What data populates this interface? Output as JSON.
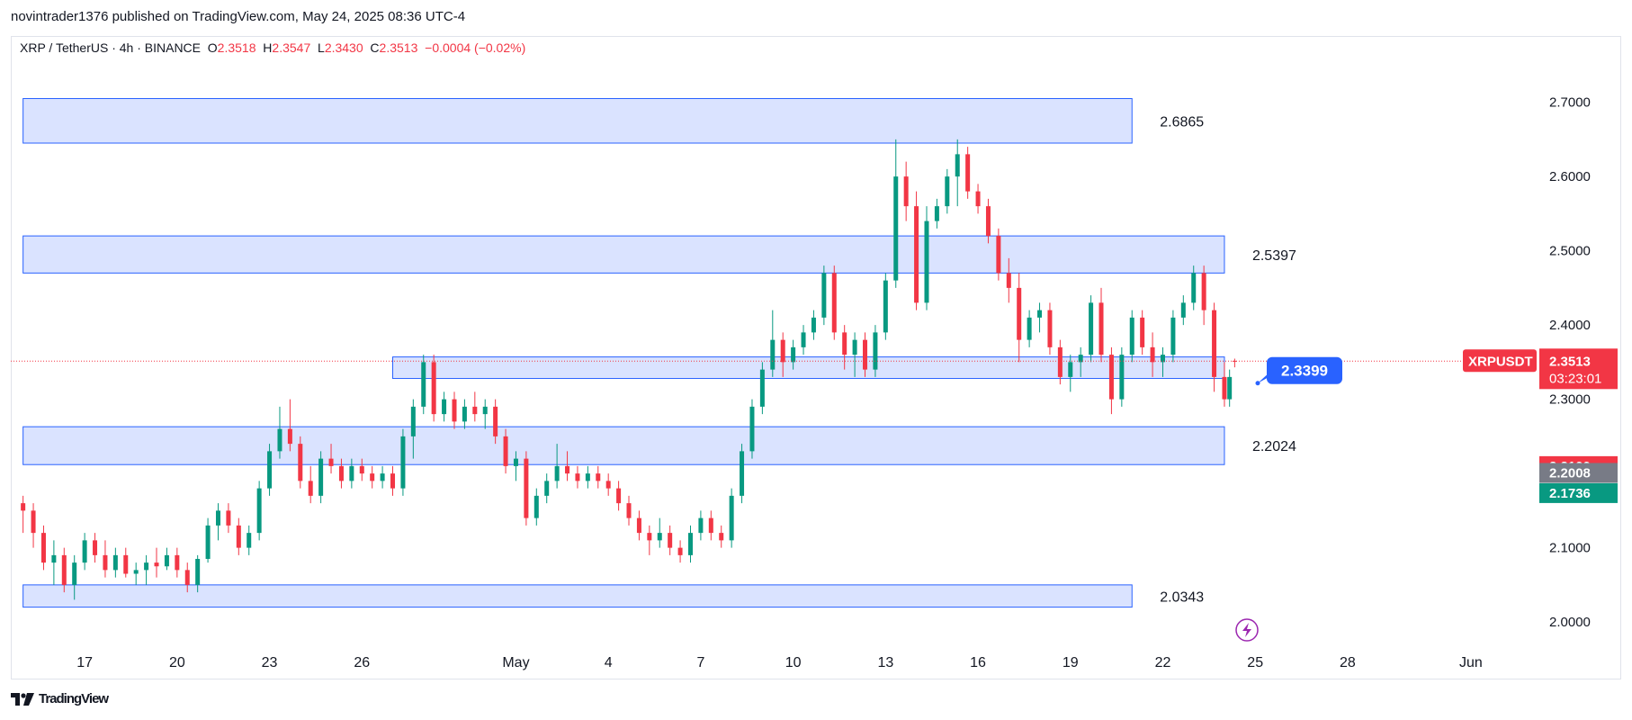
{
  "header": {
    "publish_line": "novintrader1376 published on TradingView.com, May 24, 2025 08:36 UTC-4"
  },
  "legend": {
    "symbol_line": "XRP / TetherUS · 4h · BINANCE",
    "o_label": "O",
    "o_value": "2.3518",
    "h_label": "H",
    "h_value": "2.3547",
    "l_label": "L",
    "l_value": "2.3430",
    "c_label": "C",
    "c_value": "2.3513",
    "change": "−0.0004 (−0.02%)"
  },
  "footer": {
    "brand": "TradingView",
    "logo": "tradingview-logo-icon"
  },
  "colors": {
    "up": "#089981",
    "down": "#f23645",
    "zone_fill": "#d6e0ff",
    "zone_stroke": "#2962ff",
    "callout": "#2962ff"
  },
  "chart_data": {
    "type": "candlestick",
    "symbol": "XRPUSDT",
    "ylim": [
      1.965,
      2.765
    ],
    "y_ticks": [
      "2.7000",
      "2.6000",
      "2.5000",
      "2.4000",
      "2.3000",
      "2.1000",
      "2.0000"
    ],
    "x_ticks": [
      {
        "label": "17",
        "date": "2025-04-17"
      },
      {
        "label": "20",
        "date": "2025-04-20"
      },
      {
        "label": "23",
        "date": "2025-04-23"
      },
      {
        "label": "26",
        "date": "2025-04-26"
      },
      {
        "label": "May",
        "date": "2025-05-01"
      },
      {
        "label": "4",
        "date": "2025-05-04"
      },
      {
        "label": "7",
        "date": "2025-05-07"
      },
      {
        "label": "10",
        "date": "2025-05-10"
      },
      {
        "label": "13",
        "date": "2025-05-13"
      },
      {
        "label": "16",
        "date": "2025-05-16"
      },
      {
        "label": "19",
        "date": "2025-05-19"
      },
      {
        "label": "22",
        "date": "2025-05-22"
      },
      {
        "label": "25",
        "date": "2025-05-25"
      },
      {
        "label": "28",
        "date": "2025-05-28"
      },
      {
        "label": "Jun",
        "date": "2025-06-01"
      }
    ],
    "zones": [
      {
        "label": "2.6865",
        "low": 2.645,
        "high": 2.705,
        "start": "2025-04-15",
        "end": "2025-05-21"
      },
      {
        "label": "2.5397",
        "low": 2.47,
        "high": 2.52,
        "start": "2025-04-15",
        "end": "2025-05-24"
      },
      {
        "label": "",
        "low": 2.328,
        "high": 2.357,
        "start": "2025-04-27",
        "end": "2025-05-24"
      },
      {
        "label": "2.2024",
        "low": 2.212,
        "high": 2.263,
        "start": "2025-04-15",
        "end": "2025-05-24"
      },
      {
        "label": "2.0343",
        "low": 2.02,
        "high": 2.05,
        "start": "2025-04-15",
        "end": "2025-05-21"
      }
    ],
    "callout": {
      "label": "2.3399",
      "value": 2.3399
    },
    "last_price": {
      "label": "XRPUSDT",
      "value": "2.3513",
      "countdown": "03:23:01"
    },
    "price_labels": [
      {
        "value": "2.2100",
        "color": "#f23645"
      },
      {
        "value": "2.2008",
        "color": "#787b86"
      },
      {
        "value": "2.1736",
        "color": "#089981"
      }
    ],
    "candles": [
      {
        "t": "2025-04-15 00:00",
        "o": 2.16,
        "h": 2.17,
        "l": 2.12,
        "c": 2.15
      },
      {
        "t": "2025-04-15 08:00",
        "o": 2.15,
        "h": 2.16,
        "l": 2.1,
        "c": 2.12
      },
      {
        "t": "2025-04-15 16:00",
        "o": 2.12,
        "h": 2.13,
        "l": 2.07,
        "c": 2.08
      },
      {
        "t": "2025-04-16 00:00",
        "o": 2.08,
        "h": 2.11,
        "l": 2.05,
        "c": 2.09
      },
      {
        "t": "2025-04-16 08:00",
        "o": 2.09,
        "h": 2.1,
        "l": 2.04,
        "c": 2.05
      },
      {
        "t": "2025-04-16 16:00",
        "o": 2.05,
        "h": 2.09,
        "l": 2.03,
        "c": 2.08
      },
      {
        "t": "2025-04-17 00:00",
        "o": 2.08,
        "h": 2.12,
        "l": 2.07,
        "c": 2.11
      },
      {
        "t": "2025-04-17 08:00",
        "o": 2.11,
        "h": 2.12,
        "l": 2.08,
        "c": 2.09
      },
      {
        "t": "2025-04-17 16:00",
        "o": 2.09,
        "h": 2.11,
        "l": 2.06,
        "c": 2.07
      },
      {
        "t": "2025-04-18 00:00",
        "o": 2.07,
        "h": 2.1,
        "l": 2.06,
        "c": 2.09
      },
      {
        "t": "2025-04-18 08:00",
        "o": 2.09,
        "h": 2.1,
        "l": 2.06,
        "c": 2.065
      },
      {
        "t": "2025-04-18 16:00",
        "o": 2.065,
        "h": 2.08,
        "l": 2.05,
        "c": 2.07
      },
      {
        "t": "2025-04-19 00:00",
        "o": 2.07,
        "h": 2.09,
        "l": 2.05,
        "c": 2.08
      },
      {
        "t": "2025-04-19 08:00",
        "o": 2.08,
        "h": 2.1,
        "l": 2.06,
        "c": 2.075
      },
      {
        "t": "2025-04-19 16:00",
        "o": 2.075,
        "h": 2.1,
        "l": 2.07,
        "c": 2.09
      },
      {
        "t": "2025-04-20 00:00",
        "o": 2.09,
        "h": 2.1,
        "l": 2.06,
        "c": 2.07
      },
      {
        "t": "2025-04-20 08:00",
        "o": 2.07,
        "h": 2.08,
        "l": 2.04,
        "c": 2.05
      },
      {
        "t": "2025-04-20 16:00",
        "o": 2.05,
        "h": 2.09,
        "l": 2.04,
        "c": 2.085
      },
      {
        "t": "2025-04-21 00:00",
        "o": 2.085,
        "h": 2.14,
        "l": 2.08,
        "c": 2.13
      },
      {
        "t": "2025-04-21 08:00",
        "o": 2.13,
        "h": 2.16,
        "l": 2.11,
        "c": 2.15
      },
      {
        "t": "2025-04-21 16:00",
        "o": 2.15,
        "h": 2.16,
        "l": 2.12,
        "c": 2.13
      },
      {
        "t": "2025-04-22 00:00",
        "o": 2.13,
        "h": 2.14,
        "l": 2.09,
        "c": 2.1
      },
      {
        "t": "2025-04-22 08:00",
        "o": 2.1,
        "h": 2.13,
        "l": 2.09,
        "c": 2.12
      },
      {
        "t": "2025-04-22 16:00",
        "o": 2.12,
        "h": 2.19,
        "l": 2.11,
        "c": 2.18
      },
      {
        "t": "2025-04-23 00:00",
        "o": 2.18,
        "h": 2.24,
        "l": 2.17,
        "c": 2.23
      },
      {
        "t": "2025-04-23 08:00",
        "o": 2.23,
        "h": 2.29,
        "l": 2.22,
        "c": 2.26
      },
      {
        "t": "2025-04-23 16:00",
        "o": 2.26,
        "h": 2.3,
        "l": 2.23,
        "c": 2.24
      },
      {
        "t": "2025-04-24 00:00",
        "o": 2.24,
        "h": 2.25,
        "l": 2.18,
        "c": 2.19
      },
      {
        "t": "2025-04-24 08:00",
        "o": 2.19,
        "h": 2.21,
        "l": 2.16,
        "c": 2.17
      },
      {
        "t": "2025-04-24 16:00",
        "o": 2.17,
        "h": 2.23,
        "l": 2.16,
        "c": 2.22
      },
      {
        "t": "2025-04-25 00:00",
        "o": 2.22,
        "h": 2.24,
        "l": 2.2,
        "c": 2.21
      },
      {
        "t": "2025-04-25 08:00",
        "o": 2.21,
        "h": 2.22,
        "l": 2.18,
        "c": 2.19
      },
      {
        "t": "2025-04-25 16:00",
        "o": 2.19,
        "h": 2.22,
        "l": 2.18,
        "c": 2.21
      },
      {
        "t": "2025-04-26 00:00",
        "o": 2.21,
        "h": 2.22,
        "l": 2.19,
        "c": 2.2
      },
      {
        "t": "2025-04-26 08:00",
        "o": 2.2,
        "h": 2.21,
        "l": 2.18,
        "c": 2.19
      },
      {
        "t": "2025-04-26 16:00",
        "o": 2.19,
        "h": 2.21,
        "l": 2.18,
        "c": 2.2
      },
      {
        "t": "2025-04-27 00:00",
        "o": 2.2,
        "h": 2.21,
        "l": 2.17,
        "c": 2.18
      },
      {
        "t": "2025-04-27 08:00",
        "o": 2.18,
        "h": 2.26,
        "l": 2.17,
        "c": 2.25
      },
      {
        "t": "2025-04-27 16:00",
        "o": 2.25,
        "h": 2.3,
        "l": 2.22,
        "c": 2.29
      },
      {
        "t": "2025-04-28 00:00",
        "o": 2.29,
        "h": 2.36,
        "l": 2.28,
        "c": 2.35
      },
      {
        "t": "2025-04-28 08:00",
        "o": 2.35,
        "h": 2.36,
        "l": 2.27,
        "c": 2.28
      },
      {
        "t": "2025-04-28 16:00",
        "o": 2.28,
        "h": 2.31,
        "l": 2.27,
        "c": 2.3
      },
      {
        "t": "2025-04-29 00:00",
        "o": 2.3,
        "h": 2.31,
        "l": 2.26,
        "c": 2.27
      },
      {
        "t": "2025-04-29 08:00",
        "o": 2.27,
        "h": 2.3,
        "l": 2.26,
        "c": 2.29
      },
      {
        "t": "2025-04-29 16:00",
        "o": 2.29,
        "h": 2.31,
        "l": 2.27,
        "c": 2.28
      },
      {
        "t": "2025-04-30 00:00",
        "o": 2.28,
        "h": 2.3,
        "l": 2.26,
        "c": 2.29
      },
      {
        "t": "2025-04-30 08:00",
        "o": 2.29,
        "h": 2.3,
        "l": 2.24,
        "c": 2.25
      },
      {
        "t": "2025-04-30 16:00",
        "o": 2.25,
        "h": 2.26,
        "l": 2.2,
        "c": 2.21
      },
      {
        "t": "2025-05-01 00:00",
        "o": 2.21,
        "h": 2.23,
        "l": 2.19,
        "c": 2.22
      },
      {
        "t": "2025-05-01 08:00",
        "o": 2.22,
        "h": 2.23,
        "l": 2.13,
        "c": 2.14
      },
      {
        "t": "2025-05-01 16:00",
        "o": 2.14,
        "h": 2.18,
        "l": 2.13,
        "c": 2.17
      },
      {
        "t": "2025-05-02 00:00",
        "o": 2.17,
        "h": 2.2,
        "l": 2.16,
        "c": 2.19
      },
      {
        "t": "2025-05-02 08:00",
        "o": 2.19,
        "h": 2.24,
        "l": 2.18,
        "c": 2.21
      },
      {
        "t": "2025-05-02 16:00",
        "o": 2.21,
        "h": 2.23,
        "l": 2.19,
        "c": 2.2
      },
      {
        "t": "2025-05-03 00:00",
        "o": 2.2,
        "h": 2.21,
        "l": 2.18,
        "c": 2.19
      },
      {
        "t": "2025-05-03 08:00",
        "o": 2.19,
        "h": 2.21,
        "l": 2.18,
        "c": 2.2
      },
      {
        "t": "2025-05-03 16:00",
        "o": 2.2,
        "h": 2.21,
        "l": 2.18,
        "c": 2.19
      },
      {
        "t": "2025-05-04 00:00",
        "o": 2.19,
        "h": 2.2,
        "l": 2.17,
        "c": 2.18
      },
      {
        "t": "2025-05-04 08:00",
        "o": 2.18,
        "h": 2.19,
        "l": 2.15,
        "c": 2.16
      },
      {
        "t": "2025-05-04 16:00",
        "o": 2.16,
        "h": 2.17,
        "l": 2.13,
        "c": 2.14
      },
      {
        "t": "2025-05-05 00:00",
        "o": 2.14,
        "h": 2.15,
        "l": 2.11,
        "c": 2.12
      },
      {
        "t": "2025-05-05 08:00",
        "o": 2.12,
        "h": 2.13,
        "l": 2.09,
        "c": 2.11
      },
      {
        "t": "2025-05-05 16:00",
        "o": 2.11,
        "h": 2.14,
        "l": 2.1,
        "c": 2.12
      },
      {
        "t": "2025-05-06 00:00",
        "o": 2.12,
        "h": 2.13,
        "l": 2.09,
        "c": 2.1
      },
      {
        "t": "2025-05-06 08:00",
        "o": 2.1,
        "h": 2.11,
        "l": 2.08,
        "c": 2.09
      },
      {
        "t": "2025-05-06 16:00",
        "o": 2.09,
        "h": 2.13,
        "l": 2.08,
        "c": 2.12
      },
      {
        "t": "2025-05-07 00:00",
        "o": 2.12,
        "h": 2.15,
        "l": 2.11,
        "c": 2.14
      },
      {
        "t": "2025-05-07 08:00",
        "o": 2.14,
        "h": 2.15,
        "l": 2.11,
        "c": 2.12
      },
      {
        "t": "2025-05-07 16:00",
        "o": 2.12,
        "h": 2.13,
        "l": 2.1,
        "c": 2.11
      },
      {
        "t": "2025-05-08 00:00",
        "o": 2.11,
        "h": 2.18,
        "l": 2.1,
        "c": 2.17
      },
      {
        "t": "2025-05-08 08:00",
        "o": 2.17,
        "h": 2.24,
        "l": 2.16,
        "c": 2.23
      },
      {
        "t": "2025-05-08 16:00",
        "o": 2.23,
        "h": 2.3,
        "l": 2.22,
        "c": 2.29
      },
      {
        "t": "2025-05-09 00:00",
        "o": 2.29,
        "h": 2.35,
        "l": 2.28,
        "c": 2.34
      },
      {
        "t": "2025-05-09 08:00",
        "o": 2.34,
        "h": 2.42,
        "l": 2.33,
        "c": 2.38
      },
      {
        "t": "2025-05-09 16:00",
        "o": 2.38,
        "h": 2.39,
        "l": 2.33,
        "c": 2.35
      },
      {
        "t": "2025-05-10 00:00",
        "o": 2.35,
        "h": 2.38,
        "l": 2.34,
        "c": 2.37
      },
      {
        "t": "2025-05-10 08:00",
        "o": 2.37,
        "h": 2.4,
        "l": 2.36,
        "c": 2.39
      },
      {
        "t": "2025-05-10 16:00",
        "o": 2.39,
        "h": 2.42,
        "l": 2.38,
        "c": 2.41
      },
      {
        "t": "2025-05-11 00:00",
        "o": 2.41,
        "h": 2.48,
        "l": 2.4,
        "c": 2.47
      },
      {
        "t": "2025-05-11 08:00",
        "o": 2.47,
        "h": 2.48,
        "l": 2.38,
        "c": 2.39
      },
      {
        "t": "2025-05-11 16:00",
        "o": 2.39,
        "h": 2.4,
        "l": 2.34,
        "c": 2.36
      },
      {
        "t": "2025-05-12 00:00",
        "o": 2.36,
        "h": 2.39,
        "l": 2.33,
        "c": 2.38
      },
      {
        "t": "2025-05-12 08:00",
        "o": 2.38,
        "h": 2.39,
        "l": 2.33,
        "c": 2.34
      },
      {
        "t": "2025-05-12 16:00",
        "o": 2.34,
        "h": 2.4,
        "l": 2.33,
        "c": 2.39
      },
      {
        "t": "2025-05-13 00:00",
        "o": 2.39,
        "h": 2.47,
        "l": 2.38,
        "c": 2.46
      },
      {
        "t": "2025-05-13 08:00",
        "o": 2.46,
        "h": 2.65,
        "l": 2.45,
        "c": 2.6
      },
      {
        "t": "2025-05-13 16:00",
        "o": 2.6,
        "h": 2.62,
        "l": 2.54,
        "c": 2.56
      },
      {
        "t": "2025-05-14 00:00",
        "o": 2.56,
        "h": 2.58,
        "l": 2.42,
        "c": 2.43
      },
      {
        "t": "2025-05-14 08:00",
        "o": 2.43,
        "h": 2.56,
        "l": 2.42,
        "c": 2.54
      },
      {
        "t": "2025-05-14 16:00",
        "o": 2.54,
        "h": 2.57,
        "l": 2.53,
        "c": 2.56
      },
      {
        "t": "2025-05-15 00:00",
        "o": 2.56,
        "h": 2.61,
        "l": 2.55,
        "c": 2.6
      },
      {
        "t": "2025-05-15 08:00",
        "o": 2.6,
        "h": 2.65,
        "l": 2.56,
        "c": 2.63
      },
      {
        "t": "2025-05-15 16:00",
        "o": 2.63,
        "h": 2.64,
        "l": 2.57,
        "c": 2.58
      },
      {
        "t": "2025-05-16 00:00",
        "o": 2.58,
        "h": 2.59,
        "l": 2.55,
        "c": 2.56
      },
      {
        "t": "2025-05-16 08:00",
        "o": 2.56,
        "h": 2.57,
        "l": 2.51,
        "c": 2.52
      },
      {
        "t": "2025-05-16 16:00",
        "o": 2.52,
        "h": 2.53,
        "l": 2.46,
        "c": 2.47
      },
      {
        "t": "2025-05-17 00:00",
        "o": 2.47,
        "h": 2.49,
        "l": 2.43,
        "c": 2.45
      },
      {
        "t": "2025-05-17 08:00",
        "o": 2.45,
        "h": 2.47,
        "l": 2.35,
        "c": 2.38
      },
      {
        "t": "2025-05-17 16:00",
        "o": 2.38,
        "h": 2.42,
        "l": 2.37,
        "c": 2.41
      },
      {
        "t": "2025-05-18 00:00",
        "o": 2.41,
        "h": 2.43,
        "l": 2.39,
        "c": 2.42
      },
      {
        "t": "2025-05-18 08:00",
        "o": 2.42,
        "h": 2.43,
        "l": 2.36,
        "c": 2.37
      },
      {
        "t": "2025-05-18 16:00",
        "o": 2.37,
        "h": 2.38,
        "l": 2.32,
        "c": 2.33
      },
      {
        "t": "2025-05-19 00:00",
        "o": 2.33,
        "h": 2.36,
        "l": 2.31,
        "c": 2.35
      },
      {
        "t": "2025-05-19 08:00",
        "o": 2.35,
        "h": 2.37,
        "l": 2.33,
        "c": 2.36
      },
      {
        "t": "2025-05-19 16:00",
        "o": 2.36,
        "h": 2.44,
        "l": 2.35,
        "c": 2.43
      },
      {
        "t": "2025-05-20 00:00",
        "o": 2.43,
        "h": 2.45,
        "l": 2.35,
        "c": 2.36
      },
      {
        "t": "2025-05-20 08:00",
        "o": 2.36,
        "h": 2.37,
        "l": 2.28,
        "c": 2.3
      },
      {
        "t": "2025-05-20 16:00",
        "o": 2.3,
        "h": 2.37,
        "l": 2.29,
        "c": 2.36
      },
      {
        "t": "2025-05-21 00:00",
        "o": 2.36,
        "h": 2.42,
        "l": 2.35,
        "c": 2.41
      },
      {
        "t": "2025-05-21 08:00",
        "o": 2.41,
        "h": 2.42,
        "l": 2.36,
        "c": 2.37
      },
      {
        "t": "2025-05-21 16:00",
        "o": 2.37,
        "h": 2.39,
        "l": 2.33,
        "c": 2.35
      },
      {
        "t": "2025-05-22 00:00",
        "o": 2.35,
        "h": 2.37,
        "l": 2.33,
        "c": 2.36
      },
      {
        "t": "2025-05-22 08:00",
        "o": 2.36,
        "h": 2.42,
        "l": 2.35,
        "c": 2.41
      },
      {
        "t": "2025-05-22 16:00",
        "o": 2.41,
        "h": 2.44,
        "l": 2.4,
        "c": 2.43
      },
      {
        "t": "2025-05-23 00:00",
        "o": 2.43,
        "h": 2.48,
        "l": 2.42,
        "c": 2.47
      },
      {
        "t": "2025-05-23 08:00",
        "o": 2.47,
        "h": 2.48,
        "l": 2.4,
        "c": 2.42
      },
      {
        "t": "2025-05-23 16:00",
        "o": 2.42,
        "h": 2.43,
        "l": 2.31,
        "c": 2.33
      },
      {
        "t": "2025-05-24 00:00",
        "o": 2.33,
        "h": 2.35,
        "l": 2.29,
        "c": 2.3
      },
      {
        "t": "2025-05-24 04:00",
        "o": 2.3,
        "h": 2.34,
        "l": 2.29,
        "c": 2.33
      },
      {
        "t": "2025-05-24 08:00",
        "o": 2.3518,
        "h": 2.3547,
        "l": 2.343,
        "c": 2.3513
      }
    ]
  }
}
